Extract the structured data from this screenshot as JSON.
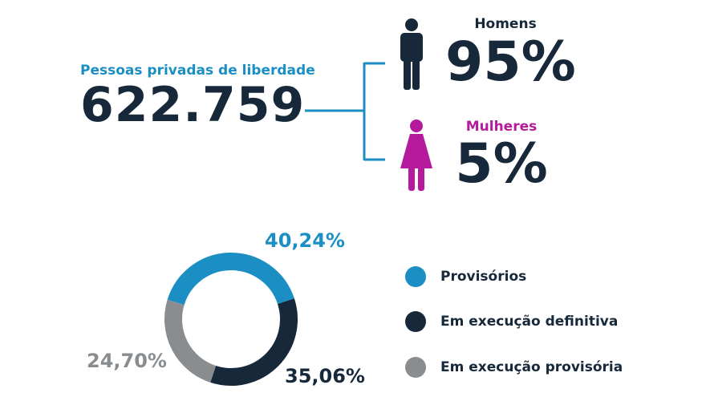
{
  "colors": {
    "dark": "#16283a",
    "blue": "#1b8fc4",
    "magenta": "#b41a9b",
    "gray": "#8a8d90"
  },
  "total": {
    "label": "Pessoas privadas de liberdade",
    "value": "622.759"
  },
  "gender": {
    "men": {
      "label": "Homens",
      "value": "95%",
      "icon": "man-icon"
    },
    "women": {
      "label": "Mulheres",
      "value": "5%",
      "icon": "woman-icon"
    }
  },
  "chart_data": {
    "type": "pie",
    "style": "donut",
    "categories": [
      "Provisórios",
      "Em execução definitiva",
      "Em execução provisória"
    ],
    "values": [
      40.24,
      35.06,
      24.7
    ],
    "data_labels": [
      "40,24%",
      "35,06%",
      "24,70%"
    ],
    "colors": [
      "#1b8fc4",
      "#16283a",
      "#8a8d90"
    ],
    "legend_position": "right"
  }
}
